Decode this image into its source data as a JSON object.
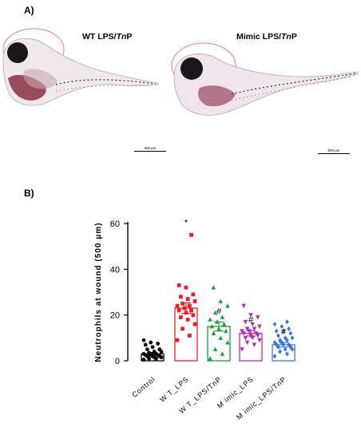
{
  "panel_a": {
    "label": "A)",
    "left_caption_plain": "WT LPS/",
    "left_caption_italic": "Tn",
    "left_caption_tail": "P",
    "right_caption_plain": "Mimic LPS/",
    "right_caption_italic": "Tn",
    "right_caption_tail": "P",
    "scalebar_left": "500 μm",
    "scalebar_right": "500 μm",
    "colors": {
      "highlight_circle": "#e8788a",
      "embryo_body": "#2a1f2a",
      "pigment": "#7a1a2a"
    }
  },
  "panel_b": {
    "label": "B)"
  },
  "chart_data": {
    "type": "bar",
    "ylabel": "Neutrophils at wound (500 μm)",
    "xlabel": "",
    "ylim": [
      0,
      60
    ],
    "yticks": [
      0,
      20,
      40,
      60
    ],
    "categories": [
      "Control",
      "W T_LPS",
      "W T_LPS/TnP",
      "M imic_LPS",
      "M imic_LPS/TnP"
    ],
    "means": [
      3,
      23,
      15,
      12,
      7
    ],
    "sem": [
      0.6,
      2.3,
      2,
      1.2,
      1
    ],
    "significance": [
      "",
      "*",
      "#",
      "#",
      "#"
    ],
    "colors": [
      "#000000",
      "#e8202a",
      "#1f9e3a",
      "#b02db0",
      "#3a76d8"
    ],
    "markers": [
      "circle",
      "square",
      "triangle",
      "inverted-triangle",
      "diamond"
    ],
    "points": [
      [
        0.5,
        1,
        1,
        1.5,
        1.5,
        2,
        2,
        2,
        2.5,
        2.5,
        3,
        3,
        3,
        3.5,
        4,
        4,
        5,
        5,
        6,
        7,
        7.5,
        8,
        9,
        1,
        2.5
      ],
      [
        9,
        11,
        14,
        16,
        18,
        19,
        20,
        21,
        22,
        22,
        23,
        24,
        24,
        25,
        26,
        27,
        28,
        29,
        32,
        33,
        55
      ],
      [
        1,
        3,
        5,
        8,
        10,
        12,
        13,
        14,
        15,
        16,
        17,
        18,
        19,
        21,
        24,
        26,
        32
      ],
      [
        5,
        7,
        8,
        9,
        10,
        10,
        11,
        11,
        12,
        12,
        13,
        13,
        14,
        14,
        15,
        16,
        17,
        19,
        20,
        24
      ],
      [
        2,
        3,
        4,
        5,
        5,
        6,
        6,
        7,
        7,
        7,
        8,
        8,
        9,
        9,
        10,
        10,
        11,
        12,
        13,
        13,
        14,
        15,
        16,
        17,
        4
      ]
    ]
  }
}
